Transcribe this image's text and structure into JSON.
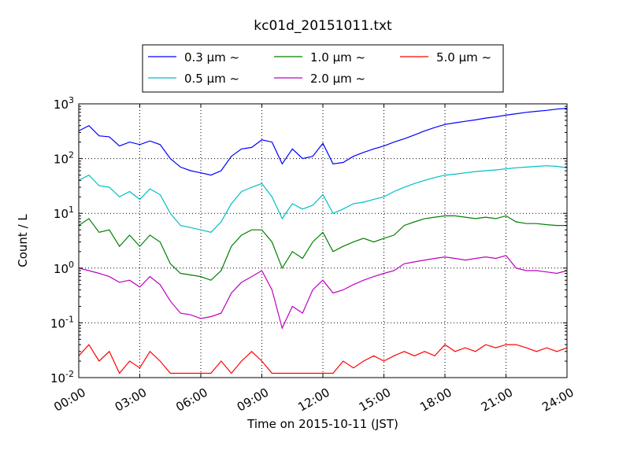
{
  "chart_data": {
    "type": "line",
    "title": "kc01d_20151011.txt",
    "xlabel": "Time on 2015-10-11 (JST)",
    "ylabel": "Count / L",
    "x_unit": "hours",
    "xlim": [
      0,
      24
    ],
    "ylim": [
      0.01,
      1000
    ],
    "yscale": "log",
    "grid": true,
    "legend_position": "top-center",
    "x_ticks": [
      {
        "value": 0,
        "label": "00:00"
      },
      {
        "value": 3,
        "label": "03:00"
      },
      {
        "value": 6,
        "label": "06:00"
      },
      {
        "value": 9,
        "label": "09:00"
      },
      {
        "value": 12,
        "label": "12:00"
      },
      {
        "value": 15,
        "label": "15:00"
      },
      {
        "value": 18,
        "label": "18:00"
      },
      {
        "value": 21,
        "label": "21:00"
      },
      {
        "value": 24,
        "label": "24:00"
      }
    ],
    "y_ticks": [
      {
        "value": 0.01,
        "base": "10",
        "exp": "-2"
      },
      {
        "value": 0.1,
        "base": "10",
        "exp": "-1"
      },
      {
        "value": 1,
        "base": "10",
        "exp": "0"
      },
      {
        "value": 10,
        "base": "10",
        "exp": "1"
      },
      {
        "value": 100,
        "base": "10",
        "exp": "2"
      },
      {
        "value": 1000,
        "base": "10",
        "exp": "3"
      }
    ],
    "x": [
      0,
      0.5,
      1,
      1.5,
      2,
      2.5,
      3,
      3.5,
      4,
      4.5,
      5,
      5.5,
      6,
      6.5,
      7,
      7.5,
      8,
      8.5,
      9,
      9.5,
      10,
      10.5,
      11,
      11.5,
      12,
      12.5,
      13,
      13.5,
      14,
      14.5,
      15,
      15.5,
      16,
      16.5,
      17,
      17.5,
      18,
      18.5,
      19,
      19.5,
      20,
      20.5,
      21,
      21.5,
      22,
      22.5,
      23,
      23.5,
      24
    ],
    "series": [
      {
        "name": "0.3 µm",
        "label_suffix": "~",
        "color": "#0000ff",
        "values": [
          320,
          400,
          260,
          250,
          170,
          200,
          180,
          210,
          180,
          100,
          70,
          60,
          55,
          50,
          60,
          110,
          150,
          160,
          220,
          200,
          80,
          150,
          100,
          110,
          190,
          80,
          85,
          110,
          130,
          150,
          170,
          200,
          230,
          270,
          320,
          370,
          420,
          450,
          480,
          510,
          550,
          580,
          620,
          660,
          700,
          730,
          760,
          800,
          830
        ]
      },
      {
        "name": "0.5 µm",
        "label_suffix": "~",
        "color": "#00bfbf",
        "values": [
          40,
          50,
          32,
          30,
          20,
          25,
          18,
          28,
          22,
          10,
          6,
          5.5,
          5,
          4.5,
          7,
          15,
          25,
          30,
          35,
          20,
          8,
          15,
          12,
          14,
          22,
          10,
          12,
          15,
          16,
          18,
          20,
          25,
          30,
          35,
          40,
          45,
          50,
          52,
          55,
          58,
          60,
          62,
          65,
          68,
          70,
          72,
          74,
          72,
          68
        ]
      },
      {
        "name": "1.0 µm",
        "label_suffix": "~",
        "color": "#008000",
        "values": [
          6,
          8,
          4.5,
          5,
          2.5,
          4,
          2.5,
          4,
          3,
          1.2,
          0.8,
          0.75,
          0.7,
          0.6,
          0.9,
          2.5,
          4,
          5,
          5,
          3,
          1,
          2,
          1.5,
          3,
          4.5,
          2,
          2.5,
          3,
          3.5,
          3,
          3.5,
          4,
          6,
          7,
          8,
          8.5,
          9,
          9,
          8.5,
          8,
          8.5,
          8,
          9,
          7,
          6.5,
          6.5,
          6.2,
          6,
          6
        ]
      },
      {
        "name": "2.0 µm",
        "label_suffix": "~",
        "color": "#bf00bf",
        "values": [
          1,
          0.9,
          0.8,
          0.7,
          0.55,
          0.6,
          0.45,
          0.7,
          0.5,
          0.25,
          0.15,
          0.14,
          0.12,
          0.13,
          0.15,
          0.35,
          0.55,
          0.7,
          0.9,
          0.4,
          0.08,
          0.2,
          0.15,
          0.4,
          0.6,
          0.35,
          0.4,
          0.5,
          0.6,
          0.7,
          0.8,
          0.9,
          1.2,
          1.3,
          1.4,
          1.5,
          1.6,
          1.5,
          1.4,
          1.5,
          1.6,
          1.5,
          1.7,
          1.0,
          0.9,
          0.9,
          0.85,
          0.8,
          0.9
        ]
      },
      {
        "name": "5.0 µm",
        "label_suffix": "~",
        "color": "#ff0000",
        "values": [
          0.025,
          0.04,
          0.02,
          0.03,
          0.012,
          0.02,
          0.015,
          0.03,
          0.02,
          0.012,
          0.012,
          0.012,
          0.012,
          0.012,
          0.02,
          0.012,
          0.02,
          0.03,
          0.02,
          0.012,
          0.012,
          0.012,
          0.012,
          0.012,
          0.012,
          0.012,
          0.02,
          0.015,
          0.02,
          0.025,
          0.02,
          0.025,
          0.03,
          0.025,
          0.03,
          0.025,
          0.04,
          0.03,
          0.035,
          0.03,
          0.04,
          0.035,
          0.04,
          0.04,
          0.035,
          0.03,
          0.035,
          0.03,
          0.035
        ]
      }
    ]
  }
}
